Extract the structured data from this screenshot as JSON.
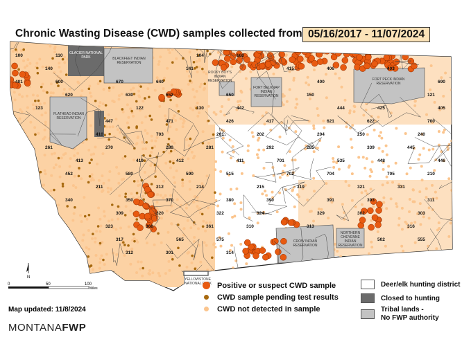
{
  "title": "Chronic Wasting Disease (CWD) samples collected from",
  "date_range": "05/16/2017  - 11/07/2024",
  "map_updated": "Map updated: 11/8/2024",
  "logo": {
    "montana": "MONTANA",
    "fwp": "FWP"
  },
  "scale": {
    "ticks": [
      "0",
      "50",
      "100"
    ],
    "unit": "Miles"
  },
  "north_label": "N",
  "colors": {
    "positive": "#e85a10",
    "pending": "#a86a10",
    "not_detected": "#fbc58e",
    "closed": "#6b6b6b",
    "tribal": "#c3c3c3"
  },
  "legend_samples": [
    {
      "label": "Positive or suspect CWD sample",
      "icon": "positive-dot"
    },
    {
      "label": "CWD sample pending test results",
      "icon": "pending-dot"
    },
    {
      "label": "CWD not detected in sample",
      "icon": "not-detected-dot"
    }
  ],
  "legend_areas": [
    {
      "label": "Deer/elk hunting district"
    },
    {
      "label": "Closed to hunting"
    },
    {
      "label": "Tribal lands -\nNo FWP authority"
    }
  ],
  "area_labels": {
    "glacier": "GLACIER NATIONAL PARK",
    "blackfeet": "BLACKFEET INDIAN RESERVATION",
    "flathead": "FLATHEAD INDIAN RESERVATION",
    "rocky_boy": "ROCKY BOY'S INDIAN RESERVATION",
    "fort_belknap": "FORT BELKNAP INDIAN RESERVATION",
    "fort_peck": "FORT PECK INDIAN RESERVATION",
    "crow": "CROW INDIAN RESERVATION",
    "northern_cheyenne": "NORTHERN CHEYENNE INDIAN RESERVATION",
    "yellowstone": "YELLOWSTONE NATIONAL PARK"
  },
  "districts": [
    "100",
    "110",
    "104",
    "103",
    "140",
    "141",
    "415",
    "406",
    "403",
    "401",
    "600",
    "670",
    "640",
    "400",
    "690",
    "620",
    "630",
    "652",
    "650",
    "150",
    "121",
    "123",
    "122",
    "130",
    "442",
    "444",
    "425",
    "405",
    "447",
    "471",
    "426",
    "417",
    "621",
    "622",
    "700",
    "410",
    "703",
    "201",
    "202",
    "204",
    "250",
    "240",
    "261",
    "270",
    "280",
    "281",
    "292",
    "285",
    "339",
    "445",
    "413",
    "419",
    "412",
    "411",
    "701",
    "535",
    "448",
    "446",
    "452",
    "580",
    "590",
    "515",
    "702",
    "704",
    "705",
    "210",
    "211",
    "212",
    "214",
    "215",
    "319",
    "321",
    "331",
    "340",
    "350",
    "370",
    "380",
    "390",
    "391",
    "393",
    "311",
    "309",
    "320",
    "322",
    "324",
    "329",
    "302",
    "303",
    "323",
    "360",
    "361",
    "310",
    "313",
    "316",
    "317",
    "565",
    "575",
    "502",
    "555",
    "312",
    "301",
    "314"
  ]
}
